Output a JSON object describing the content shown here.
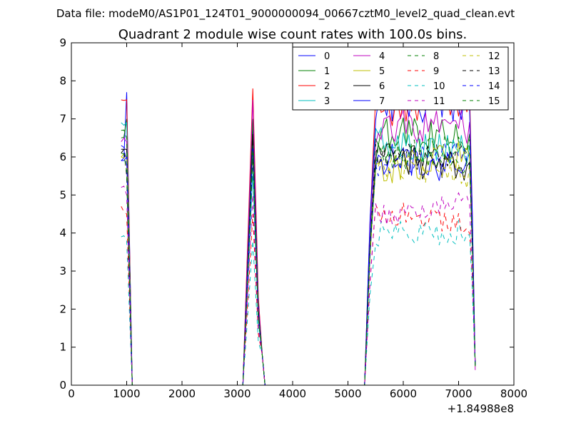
{
  "chart_data": {
    "type": "line",
    "suptitle": "Data file: modeM0/AS1P01_124T01_9000000094_00667cztM0_level2_quad_clean.evt",
    "title": "Quadrant 2 module wise count rates with 100.0s bins.",
    "xlabel": "",
    "ylabel": "",
    "x_offset_label": "+1.84988e8",
    "xlim": [
      0,
      8000
    ],
    "ylim": [
      0,
      9
    ],
    "xticks": [
      0,
      1000,
      2000,
      3000,
      4000,
      5000,
      6000,
      7000,
      8000
    ],
    "yticks": [
      0,
      1,
      2,
      3,
      4,
      5,
      6,
      7,
      8,
      9
    ],
    "xtick_labels": [
      "0",
      "1000",
      "2000",
      "3000",
      "4000",
      "5000",
      "6000",
      "7000",
      "8000"
    ],
    "ytick_labels": [
      "0",
      "1",
      "2",
      "3",
      "4",
      "5",
      "6",
      "7",
      "8",
      "9"
    ],
    "grid": false,
    "legend_position": "top-right",
    "legend_columns": 4,
    "colors": [
      "#0000ff",
      "#008000",
      "#ff0000",
      "#00bfbf",
      "#bf00bf",
      "#bfbf00",
      "#000000",
      "#0000ff",
      "#008000",
      "#ff0000",
      "#00bfbf",
      "#bf00bf",
      "#bfbf00",
      "#000000",
      "#0000ff",
      "#008000"
    ],
    "series_names": [
      "0",
      "1",
      "2",
      "3",
      "4",
      "5",
      "6",
      "7",
      "8",
      "9",
      "10",
      "11",
      "12",
      "13",
      "14",
      "15"
    ],
    "series_dashes": [
      "solid",
      "solid",
      "solid",
      "solid",
      "solid",
      "solid",
      "solid",
      "solid",
      "dashed",
      "dashed",
      "dashed",
      "dashed",
      "dashed",
      "dashed",
      "dashed",
      "dashed"
    ],
    "segments": [
      {
        "start": 900,
        "end": 1100
      },
      {
        "start": 3100,
        "end": 3500
      },
      {
        "start": 5300,
        "end": 7300
      }
    ],
    "gap_x": [
      1100,
      1200,
      1300,
      1400,
      1500,
      1600,
      1700,
      1800,
      1900,
      2000,
      2100,
      2200,
      2300,
      2400,
      2500,
      2600,
      2700,
      2800,
      2900,
      3000
    ],
    "gap2_x": [
      3500,
      3600,
      3700,
      3800,
      3900,
      4000,
      4100,
      4200,
      4300,
      4400,
      4500,
      4600,
      4700,
      4800,
      4900,
      5000,
      5100,
      5200
    ],
    "levels_segment1": [
      5.9,
      6.5,
      7.5,
      6.9,
      6.4,
      6.0,
      6.2,
      5.9,
      6.7,
      4.7,
      3.9,
      5.2,
      6.0,
      6.1,
      6.3,
      6.1
    ],
    "end_segment1": [
      7.7,
      7.0,
      7.5,
      6.9,
      6.4,
      6.0,
      6.2,
      6.0,
      6.5,
      4.5,
      3.8,
      5.0,
      6.0,
      5.5,
      5.8,
      5.6
    ],
    "peak_segment2": [
      6.8,
      7.0,
      7.8,
      5.6,
      7.5,
      6.5,
      6.6,
      6.3,
      6.3,
      4.5,
      3.8,
      5.0,
      6.0,
      6.0,
      6.0,
      6.0
    ],
    "levels_segment3": [
      6.0,
      6.6,
      7.2,
      6.4,
      6.8,
      5.7,
      6.0,
      7.3,
      6.0,
      4.6,
      4.0,
      4.5,
      5.8,
      6.0,
      5.8,
      6.1
    ],
    "end_segment3": [
      0.5,
      0.5,
      0.5,
      0.5,
      0.4,
      0.5,
      0.5,
      0.5,
      0.5,
      0.5,
      0.5,
      0.5,
      0.5,
      0.5,
      0.5,
      0.5
    ]
  }
}
